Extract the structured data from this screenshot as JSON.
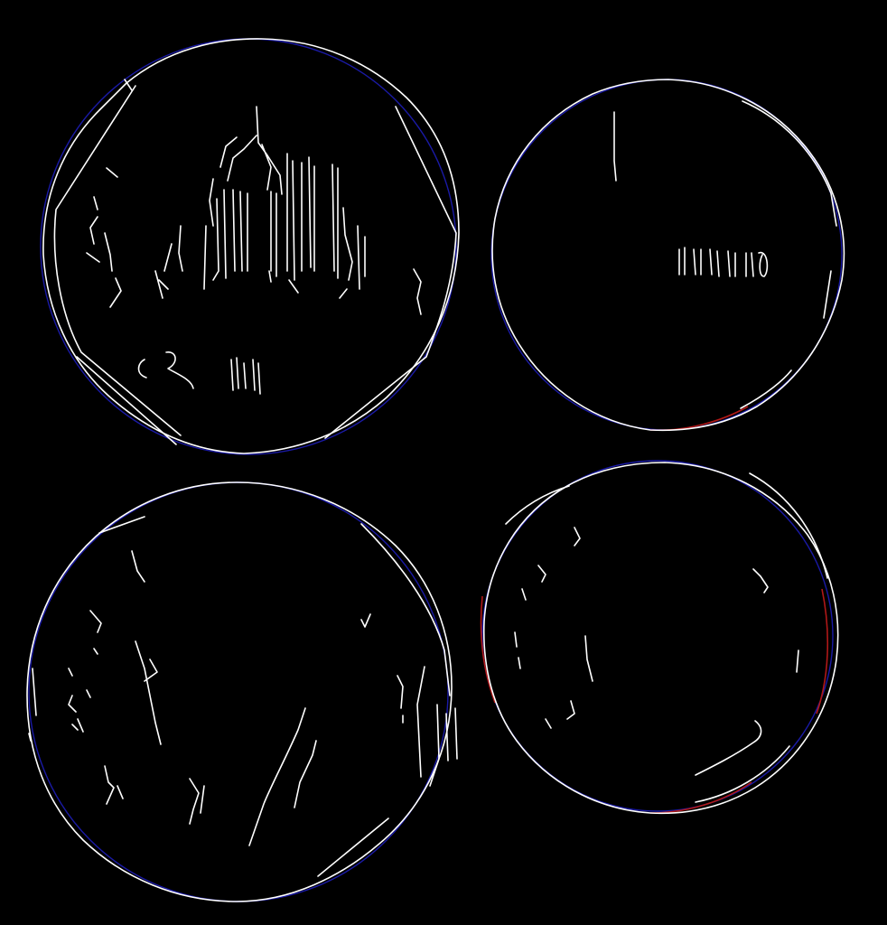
{
  "image": {
    "description_type": "edge-detection",
    "background_color": "#000000",
    "edge_color": "#ffffff",
    "fit_circle_color": "#1a1aa6",
    "fit_residual_color": "#b01818"
  },
  "coins": [
    {
      "name": "coin-top-left"
    },
    {
      "name": "coin-top-right"
    },
    {
      "name": "coin-bottom-left"
    },
    {
      "name": "coin-bottom-right"
    }
  ]
}
